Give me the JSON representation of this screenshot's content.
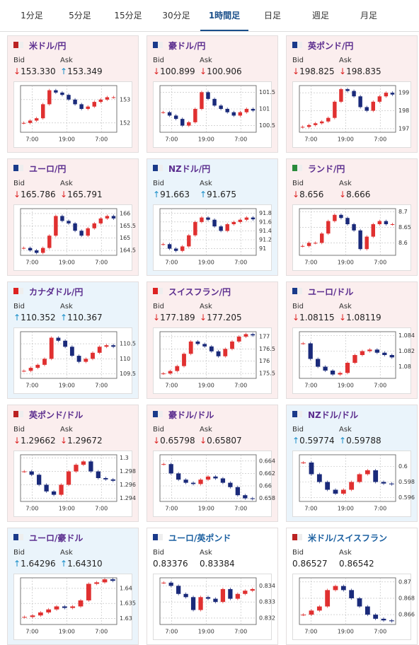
{
  "tabs": [
    "1分足",
    "5分足",
    "15分足",
    "30分足",
    "1時間足",
    "日足",
    "週足",
    "月足"
  ],
  "active_tab": 4,
  "bid_label": "Bid",
  "ask_label": "Ask",
  "panels": [
    {
      "title": "米ドル/円",
      "state": "down",
      "bid_arrow": "↓",
      "bid": "153.330",
      "ask_arrow": "↑",
      "ask": "153.349",
      "chart": {
        "ylim": [
          151.6,
          153.6
        ],
        "yticks": [
          153,
          152
        ],
        "xticks": [
          "7:00",
          "19:00",
          "7:00"
        ],
        "closes": [
          152.0,
          152.1,
          152.2,
          152.8,
          153.4,
          153.3,
          153.2,
          153.0,
          152.8,
          152.6,
          152.7,
          152.9,
          153.0,
          153.1,
          153.1
        ]
      }
    },
    {
      "title": "豪ドル/円",
      "state": "down",
      "bid_arrow": "↓",
      "bid": "100.899",
      "ask_arrow": "↓",
      "ask": "100.906",
      "chart": {
        "ylim": [
          100.3,
          101.7
        ],
        "yticks": [
          101.5,
          101,
          100.5
        ],
        "xticks": [
          "7:00",
          "19:00",
          "7:00"
        ],
        "closes": [
          100.9,
          100.8,
          100.7,
          100.5,
          100.6,
          101.0,
          101.5,
          101.3,
          101.1,
          101.0,
          100.9,
          100.8,
          100.9,
          101.0,
          100.95
        ]
      }
    },
    {
      "title": "英ポンド/円",
      "state": "down",
      "bid_arrow": "↓",
      "bid": "198.825",
      "ask_arrow": "↓",
      "ask": "198.835",
      "chart": {
        "ylim": [
          196.8,
          199.4
        ],
        "yticks": [
          199,
          198,
          197
        ],
        "xticks": [
          "7:00",
          "19:00",
          "7:00"
        ],
        "closes": [
          197.1,
          197.2,
          197.3,
          197.4,
          197.6,
          198.5,
          199.2,
          199.1,
          198.8,
          198.2,
          198.0,
          198.5,
          198.8,
          199.0,
          198.9
        ]
      }
    },
    {
      "title": "ユーロ/円",
      "state": "down",
      "bid_arrow": "↓",
      "bid": "165.786",
      "ask_arrow": "↓",
      "ask": "165.791",
      "chart": {
        "ylim": [
          164.3,
          166.2
        ],
        "yticks": [
          166,
          165.5,
          165,
          164.5
        ],
        "xticks": [
          "7:00",
          "19:00",
          "7:00"
        ],
        "closes": [
          164.6,
          164.5,
          164.4,
          164.6,
          165.1,
          165.9,
          165.7,
          165.6,
          165.3,
          165.1,
          165.4,
          165.6,
          165.8,
          165.9,
          165.8
        ]
      }
    },
    {
      "title": "NZドル/円",
      "state": "up",
      "bid_arrow": "↑",
      "bid": "91.663",
      "ask_arrow": "↑",
      "ask": "91.675",
      "chart": {
        "ylim": [
          90.85,
          91.9
        ],
        "yticks": [
          91.8,
          91.6,
          91.4,
          91.2,
          91
        ],
        "xticks": [
          "7:00",
          "19:00",
          "7:00"
        ],
        "closes": [
          91.1,
          91.0,
          90.95,
          91.05,
          91.3,
          91.6,
          91.7,
          91.65,
          91.5,
          91.4,
          91.55,
          91.6,
          91.65,
          91.7,
          91.66
        ]
      }
    },
    {
      "title": "ランド/円",
      "state": "down",
      "bid_arrow": "↓",
      "bid": "8.656",
      "ask_arrow": "↓",
      "ask": "8.666",
      "chart": {
        "ylim": [
          8.56,
          8.71
        ],
        "yticks": [
          8.7,
          8.65,
          8.6
        ],
        "xticks": [
          "7:00",
          "19:00",
          "7:00"
        ],
        "closes": [
          8.59,
          8.6,
          8.6,
          8.63,
          8.67,
          8.69,
          8.68,
          8.66,
          8.64,
          8.58,
          8.62,
          8.66,
          8.67,
          8.66,
          8.66
        ]
      }
    },
    {
      "title": "カナダドル/円",
      "state": "up",
      "bid_arrow": "↑",
      "bid": "110.352",
      "ask_arrow": "↑",
      "ask": "110.367",
      "chart": {
        "ylim": [
          109.35,
          110.9
        ],
        "yticks": [
          110.5,
          110,
          109.5
        ],
        "xticks": [
          "7:00",
          "19:00",
          "7:00"
        ],
        "closes": [
          109.6,
          109.7,
          109.8,
          110.0,
          110.7,
          110.6,
          110.4,
          110.1,
          109.9,
          110.0,
          110.2,
          110.4,
          110.45,
          110.4
        ]
      }
    },
    {
      "title": "スイスフラン/円",
      "state": "down",
      "bid_arrow": "↓",
      "bid": "177.189",
      "ask_arrow": "↓",
      "ask": "177.205",
      "chart": {
        "ylim": [
          175.3,
          177.2
        ],
        "yticks": [
          177,
          176.5,
          176,
          175.5
        ],
        "xticks": [
          "7:00",
          "19:00",
          "7:00"
        ],
        "closes": [
          175.5,
          175.6,
          175.8,
          176.3,
          176.8,
          176.7,
          176.6,
          176.4,
          176.2,
          176.5,
          176.8,
          177.0,
          177.1,
          177.05
        ]
      }
    },
    {
      "title": "ユーロ/ドル",
      "state": "down",
      "bid_arrow": "↓",
      "bid": "1.08115",
      "ask_arrow": "↓",
      "ask": "1.08119",
      "chart": {
        "ylim": [
          1.0785,
          1.0845
        ],
        "yticks": [
          1.084,
          1.082,
          1.08
        ],
        "xticks": [
          "7:00",
          "19:00",
          "7:00"
        ],
        "closes": [
          1.083,
          1.081,
          1.08,
          1.0795,
          1.079,
          1.0792,
          1.0805,
          1.0815,
          1.082,
          1.0822,
          1.0818,
          1.0815,
          1.0812
        ]
      }
    },
    {
      "title": "英ポンド/ドル",
      "state": "down",
      "bid_arrow": "↓",
      "bid": "1.29662",
      "ask_arrow": "↓",
      "ask": "1.29672",
      "chart": {
        "ylim": [
          1.2935,
          1.3005
        ],
        "yticks": [
          1.3,
          1.298,
          1.296,
          1.294
        ],
        "xticks": [
          "7:00",
          "19:00",
          "7:00"
        ],
        "closes": [
          1.298,
          1.2975,
          1.296,
          1.295,
          1.2945,
          1.296,
          1.298,
          1.299,
          1.2995,
          1.298,
          1.297,
          1.2968,
          1.2966
        ]
      }
    },
    {
      "title": "豪ドル/ドル",
      "state": "down",
      "bid_arrow": "↓",
      "bid": "0.65798",
      "ask_arrow": "↓",
      "ask": "0.65807",
      "chart": {
        "ylim": [
          0.6575,
          0.665
        ],
        "yticks": [
          0.664,
          0.662,
          0.66,
          0.658
        ],
        "xticks": [
          "7:00",
          "19:00",
          "7:00"
        ],
        "closes": [
          0.6635,
          0.662,
          0.661,
          0.6605,
          0.6603,
          0.661,
          0.6615,
          0.6612,
          0.6605,
          0.6598,
          0.6585,
          0.658,
          0.6579
        ]
      }
    },
    {
      "title": "NZドル/ドル",
      "state": "up",
      "bid_arrow": "↑",
      "bid": "0.59774",
      "ask_arrow": "↑",
      "ask": "0.59788",
      "chart": {
        "ylim": [
          0.5955,
          0.6015
        ],
        "yticks": [
          0.6,
          0.598,
          0.596
        ],
        "xticks": [
          "7:00",
          "19:00",
          "7:00"
        ],
        "closes": [
          0.6005,
          0.599,
          0.598,
          0.597,
          0.5965,
          0.597,
          0.598,
          0.599,
          0.5995,
          0.598,
          0.5978,
          0.5977
        ]
      }
    },
    {
      "title": "ユーロ/豪ドル",
      "state": "up",
      "bid_arrow": "↑",
      "bid": "1.64296",
      "ask_arrow": "↑",
      "ask": "1.64310",
      "chart": {
        "ylim": [
          1.628,
          1.6435
        ],
        "yticks": [
          1.64,
          1.635,
          1.63
        ],
        "xticks": [
          "7:00",
          "19:00",
          "7:00"
        ],
        "closes": [
          1.6305,
          1.631,
          1.632,
          1.633,
          1.634,
          1.6335,
          1.634,
          1.636,
          1.6415,
          1.642,
          1.643,
          1.6425
        ]
      }
    },
    {
      "title": "ユーロ/英ポンド",
      "state": "none",
      "bid": "0.83376",
      "ask": "0.83384",
      "chart": {
        "ylim": [
          0.8316,
          0.8345
        ],
        "yticks": [
          0.834,
          0.833,
          0.832
        ],
        "xticks": [
          "7:00",
          "19:00",
          "7:00"
        ],
        "closes": [
          0.8342,
          0.834,
          0.8335,
          0.8333,
          0.8325,
          0.8333,
          0.8332,
          0.833,
          0.8338,
          0.8332,
          0.8335,
          0.8337,
          0.8338
        ]
      }
    },
    {
      "title": "米ドル/スイスフラン",
      "state": "none",
      "bid": "0.86527",
      "ask": "0.86542",
      "chart": {
        "ylim": [
          0.8648,
          0.8705
        ],
        "yticks": [
          0.87,
          0.868,
          0.866
        ],
        "xticks": [
          "7:00",
          "19:00",
          "7:00"
        ],
        "closes": [
          0.866,
          0.8665,
          0.867,
          0.869,
          0.8695,
          0.869,
          0.868,
          0.867,
          0.866,
          0.8655,
          0.8653,
          0.8652
        ]
      }
    }
  ]
}
